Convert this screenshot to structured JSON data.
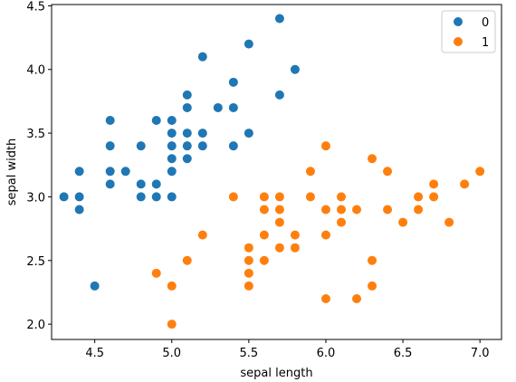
{
  "chart_data": {
    "type": "scatter",
    "title": "",
    "xlabel": "sepal length",
    "ylabel": "sepal width",
    "xlim": [
      4.22,
      7.14
    ],
    "ylim": [
      1.88,
      4.51
    ],
    "xticks": [
      "4.5",
      "5.0",
      "5.5",
      "6.0",
      "6.5",
      "7.0"
    ],
    "yticks": [
      "2.0",
      "2.5",
      "3.0",
      "3.5",
      "4.0",
      "4.5"
    ],
    "grid": false,
    "legend_position": "top-right",
    "series": [
      {
        "name": "0",
        "color": "#1f77b4",
        "points": [
          [
            4.3,
            3.0
          ],
          [
            4.4,
            3.2
          ],
          [
            4.4,
            3.0
          ],
          [
            4.4,
            2.9
          ],
          [
            4.5,
            2.3
          ],
          [
            4.6,
            3.6
          ],
          [
            4.6,
            3.4
          ],
          [
            4.6,
            3.2
          ],
          [
            4.6,
            3.1
          ],
          [
            4.7,
            3.2
          ],
          [
            4.8,
            3.4
          ],
          [
            4.8,
            3.1
          ],
          [
            4.8,
            3.0
          ],
          [
            4.9,
            3.6
          ],
          [
            4.9,
            3.1
          ],
          [
            4.9,
            3.0
          ],
          [
            5.0,
            3.6
          ],
          [
            5.0,
            3.5
          ],
          [
            5.0,
            3.4
          ],
          [
            5.0,
            3.3
          ],
          [
            5.0,
            3.2
          ],
          [
            5.0,
            3.0
          ],
          [
            5.1,
            3.8
          ],
          [
            5.1,
            3.7
          ],
          [
            5.1,
            3.5
          ],
          [
            5.1,
            3.4
          ],
          [
            5.1,
            3.3
          ],
          [
            5.2,
            4.1
          ],
          [
            5.2,
            3.5
          ],
          [
            5.2,
            3.4
          ],
          [
            5.3,
            3.7
          ],
          [
            5.4,
            3.9
          ],
          [
            5.4,
            3.7
          ],
          [
            5.4,
            3.4
          ],
          [
            5.5,
            4.2
          ],
          [
            5.5,
            3.5
          ],
          [
            5.7,
            4.4
          ],
          [
            5.7,
            3.8
          ],
          [
            5.8,
            4.0
          ]
        ]
      },
      {
        "name": "1",
        "color": "#ff7f0e",
        "points": [
          [
            4.9,
            2.4
          ],
          [
            5.0,
            2.3
          ],
          [
            5.0,
            2.0
          ],
          [
            5.1,
            2.5
          ],
          [
            5.2,
            2.7
          ],
          [
            5.4,
            3.0
          ],
          [
            5.5,
            2.6
          ],
          [
            5.5,
            2.5
          ],
          [
            5.5,
            2.4
          ],
          [
            5.5,
            2.3
          ],
          [
            5.6,
            3.0
          ],
          [
            5.6,
            2.9
          ],
          [
            5.6,
            2.7
          ],
          [
            5.6,
            2.5
          ],
          [
            5.7,
            3.0
          ],
          [
            5.7,
            2.9
          ],
          [
            5.7,
            2.8
          ],
          [
            5.7,
            2.6
          ],
          [
            5.8,
            2.7
          ],
          [
            5.8,
            2.6
          ],
          [
            5.9,
            3.2
          ],
          [
            5.9,
            3.0
          ],
          [
            6.0,
            3.4
          ],
          [
            6.0,
            2.9
          ],
          [
            6.0,
            2.7
          ],
          [
            6.0,
            2.2
          ],
          [
            6.1,
            3.0
          ],
          [
            6.1,
            2.9
          ],
          [
            6.1,
            2.8
          ],
          [
            6.2,
            2.9
          ],
          [
            6.2,
            2.2
          ],
          [
            6.3,
            3.3
          ],
          [
            6.3,
            2.5
          ],
          [
            6.3,
            2.3
          ],
          [
            6.4,
            3.2
          ],
          [
            6.4,
            2.9
          ],
          [
            6.5,
            2.8
          ],
          [
            6.6,
            3.0
          ],
          [
            6.6,
            2.9
          ],
          [
            6.7,
            3.1
          ],
          [
            6.7,
            3.0
          ],
          [
            6.8,
            2.8
          ],
          [
            6.9,
            3.1
          ],
          [
            7.0,
            3.2
          ]
        ]
      }
    ]
  }
}
